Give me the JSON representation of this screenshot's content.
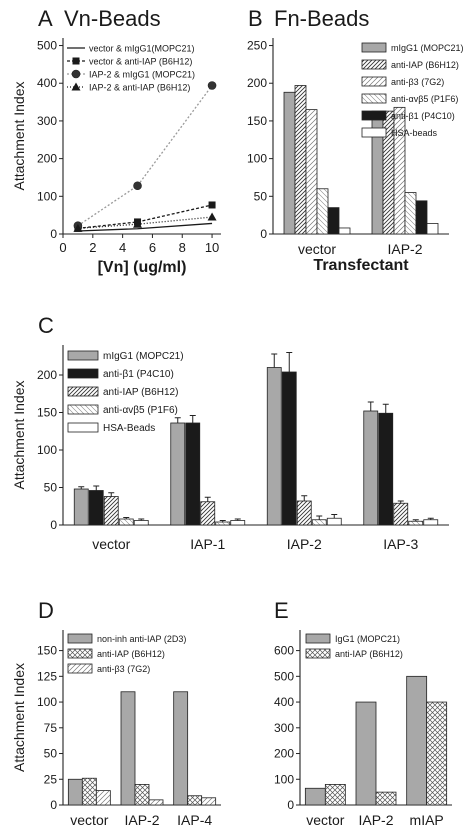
{
  "chart_data": [
    {
      "id": "A",
      "type": "line",
      "panel_label": "A",
      "title": "Vn-Beads",
      "ylabel": "Attachment Index",
      "xlabel": "[Vn] (ug/ml)",
      "xlim": [
        0,
        10.6
      ],
      "ylim": [
        0,
        520
      ],
      "x_ticks": [
        0,
        2,
        4,
        6,
        8,
        10
      ],
      "y_ticks": [
        0,
        100,
        200,
        300,
        400,
        500
      ],
      "legend_position": "top-left",
      "series": [
        {
          "name": "vector & mIgG1(MOPC21)",
          "x": [
            1,
            5,
            10
          ],
          "y": [
            8,
            14,
            28
          ],
          "marker": "none",
          "color": "#1a1a1a",
          "dash": "none"
        },
        {
          "name": "vector & anti-IAP (B6H12)",
          "x": [
            1,
            5,
            10
          ],
          "y": [
            15,
            32,
            77
          ],
          "marker": "square",
          "color": "#1a1a1a",
          "dash": "3,2"
        },
        {
          "name": "IAP-2 & mIgG1 (MOPC21)",
          "x": [
            1,
            5,
            10
          ],
          "y": [
            22,
            128,
            394
          ],
          "marker": "circle",
          "color": "#9a9a9a",
          "dash": "2,2"
        },
        {
          "name": "IAP-2 & anti-IAP (B6H12)",
          "x": [
            1,
            5,
            10
          ],
          "y": [
            15,
            26,
            45
          ],
          "marker": "triangle",
          "color": "#1a1a1a",
          "dash": "1,2"
        }
      ]
    },
    {
      "id": "B",
      "type": "bar",
      "panel_label": "B",
      "title": "Fn-Beads",
      "ylabel": "",
      "xlabel": "Transfectant",
      "categories": [
        "vector",
        "IAP-2"
      ],
      "ylim": [
        0,
        260
      ],
      "y_ticks": [
        0,
        50,
        100,
        150,
        200,
        250
      ],
      "legend_position": "top-right",
      "series": [
        {
          "name": "mIgG1 (MOPC21)",
          "pattern": "gray",
          "values": [
            188,
            163
          ]
        },
        {
          "name": "anti-IAP (B6H12)",
          "pattern": "diag",
          "values": [
            197,
            163
          ]
        },
        {
          "name": "anti-β3 (7G2)",
          "pattern": "diag-light",
          "values": [
            165,
            168
          ]
        },
        {
          "name": "anti-αvβ5 (P1F6)",
          "pattern": "hatch-light",
          "values": [
            60,
            55
          ]
        },
        {
          "name": "anti-β1 (P4C10)",
          "pattern": "black",
          "values": [
            35,
            44
          ]
        },
        {
          "name": "HSA-beads",
          "pattern": "white",
          "values": [
            8,
            14
          ]
        }
      ]
    },
    {
      "id": "C",
      "type": "bar",
      "panel_label": "C",
      "title": "",
      "ylabel": "Attachment Index",
      "xlabel": "",
      "categories": [
        "vector",
        "IAP-1",
        "IAP-2",
        "IAP-3"
      ],
      "ylim": [
        0,
        240
      ],
      "y_ticks": [
        0,
        50,
        100,
        150,
        200
      ],
      "legend_position": "top-left",
      "series": [
        {
          "name": "mIgG1 (MOPC21)",
          "pattern": "gray",
          "values": [
            48,
            136,
            210,
            152
          ],
          "errors": [
            3,
            7,
            18,
            12
          ]
        },
        {
          "name": "anti-β1 (P4C10)",
          "pattern": "black",
          "values": [
            46,
            136,
            204,
            149
          ],
          "errors": [
            6,
            10,
            26,
            12
          ]
        },
        {
          "name": "anti-IAP (B6H12)",
          "pattern": "diag",
          "values": [
            38,
            31,
            32,
            29
          ],
          "errors": [
            5,
            6,
            7,
            3
          ]
        },
        {
          "name": "anti-αvβ5 (P1F6)",
          "pattern": "hatch-light",
          "values": [
            8,
            4,
            7,
            5
          ],
          "errors": [
            2,
            2,
            5,
            2
          ]
        },
        {
          "name": "HSA-Beads",
          "pattern": "white",
          "values": [
            6,
            6,
            9,
            7
          ],
          "errors": [
            2,
            2,
            5,
            2
          ]
        }
      ]
    },
    {
      "id": "D",
      "type": "bar",
      "panel_label": "D",
      "title": "",
      "ylabel": "Attachment Index",
      "xlabel": "",
      "categories": [
        "vector",
        "IAP-2",
        "IAP-4"
      ],
      "ylim": [
        0,
        170
      ],
      "y_ticks": [
        0,
        25,
        50,
        75,
        100,
        125,
        150
      ],
      "legend_position": "top-left",
      "series": [
        {
          "name": "non-inh anti-IAP (2D3)",
          "pattern": "gray",
          "values": [
            25,
            110,
            110
          ]
        },
        {
          "name": "anti-IAP (B6H12)",
          "pattern": "cross",
          "values": [
            26,
            20,
            9
          ]
        },
        {
          "name": "anti-β3 (7G2)",
          "pattern": "diag-light",
          "values": [
            14,
            5,
            7
          ]
        }
      ]
    },
    {
      "id": "E",
      "type": "bar",
      "panel_label": "E",
      "title": "",
      "ylabel": "",
      "xlabel": "",
      "categories": [
        "vector",
        "IAP-2",
        "mIAP"
      ],
      "ylim": [
        0,
        680
      ],
      "y_ticks": [
        0,
        100,
        200,
        300,
        400,
        500,
        600
      ],
      "legend_position": "top-left",
      "series": [
        {
          "name": "IgG1 (MOPC21)",
          "pattern": "gray",
          "values": [
            65,
            400,
            500
          ]
        },
        {
          "name": "anti-IAP (B6H12)",
          "pattern": "cross",
          "values": [
            80,
            50,
            400
          ]
        }
      ]
    }
  ]
}
